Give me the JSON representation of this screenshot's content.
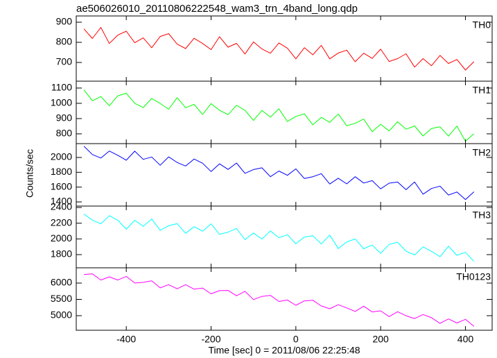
{
  "title": "ae506026010_20110806222548_wam3_trn_4band_long.qdp",
  "xlabel": "Time [sec] 0 = 2011/08/06 22:25:48",
  "ylabel": "Counts/sec",
  "chart_data": [
    {
      "type": "line",
      "label": "TH0",
      "color": "#ff0000",
      "x": [
        -500,
        -480,
        -460,
        -440,
        -420,
        -400,
        -380,
        -360,
        -340,
        -320,
        -300,
        -280,
        -260,
        -240,
        -220,
        -200,
        -180,
        -160,
        -140,
        -120,
        -100,
        -80,
        -60,
        -40,
        -20,
        0,
        20,
        40,
        60,
        80,
        100,
        120,
        140,
        160,
        180,
        200,
        220,
        240,
        260,
        280,
        300,
        320,
        340,
        360,
        380,
        400,
        420
      ],
      "values": [
        867,
        819,
        874,
        794,
        836,
        855,
        798,
        822,
        773,
        829,
        843,
        791,
        769,
        820,
        794,
        764,
        828,
        776,
        795,
        742,
        802,
        767,
        746,
        797,
        771,
        718,
        773,
        738,
        785,
        718,
        747,
        761,
        704,
        746,
        720,
        766,
        705,
        719,
        743,
        677,
        719,
        684,
        735,
        695,
        715,
        662,
        704
      ],
      "xlim": [
        -518,
        463
      ],
      "xticks": [
        -400,
        -200,
        0,
        200,
        400
      ],
      "ylim": [
        607,
        931
      ],
      "yticks": [
        700,
        800,
        900
      ]
    },
    {
      "type": "line",
      "label": "TH1",
      "color": "#00ff00",
      "x": [
        -500,
        -480,
        -460,
        -440,
        -420,
        -400,
        -380,
        -360,
        -340,
        -320,
        -300,
        -280,
        -260,
        -240,
        -220,
        -200,
        -180,
        -160,
        -140,
        -120,
        -100,
        -80,
        -60,
        -40,
        -20,
        0,
        20,
        40,
        60,
        80,
        100,
        120,
        140,
        160,
        180,
        200,
        220,
        240,
        260,
        280,
        300,
        320,
        340,
        360,
        380,
        400,
        420
      ],
      "values": [
        1089,
        1017,
        1044,
        984,
        1049,
        1066,
        1000,
        972,
        1032,
        999,
        961,
        1037,
        971,
        993,
        927,
        998,
        954,
        926,
        987,
        954,
        888,
        953,
        909,
        964,
        881,
        914,
        931,
        859,
        908,
        875,
        930,
        853,
        869,
        897,
        814,
        863,
        819,
        879,
        830,
        852,
        786,
        835,
        846,
        785,
        851,
        752,
        801
      ],
      "xlim": [
        -518,
        463
      ],
      "xticks": [
        -400,
        -200,
        0,
        200,
        400
      ],
      "ylim": [
        736,
        1145
      ],
      "yticks": [
        800,
        900,
        1000,
        1100
      ]
    },
    {
      "type": "line",
      "label": "TH2",
      "color": "#0000ff",
      "x": [
        -500,
        -480,
        -460,
        -440,
        -420,
        -400,
        -380,
        -360,
        -340,
        -320,
        -300,
        -280,
        -260,
        -240,
        -220,
        -200,
        -180,
        -160,
        -140,
        -120,
        -100,
        -80,
        -60,
        -40,
        -20,
        0,
        20,
        40,
        60,
        80,
        100,
        120,
        140,
        160,
        180,
        200,
        220,
        240,
        260,
        280,
        300,
        320,
        340,
        360,
        380,
        400,
        420
      ],
      "values": [
        2152,
        2040,
        1992,
        2087,
        2030,
        1963,
        2085,
        1974,
        2006,
        1895,
        2008,
        1932,
        1884,
        1979,
        1922,
        1810,
        1914,
        1839,
        1925,
        1786,
        1837,
        1860,
        1740,
        1817,
        1759,
        1846,
        1716,
        1740,
        1781,
        1642,
        1720,
        1644,
        1740,
        1655,
        1687,
        1576,
        1653,
        1668,
        1565,
        1669,
        1504,
        1581,
        1613,
        1493,
        1534,
        1432,
        1536
      ],
      "xlim": [
        -518,
        463
      ],
      "xticks": [
        -400,
        -200,
        0,
        200,
        400
      ],
      "ylim": [
        1344,
        2187
      ],
      "yticks": [
        1400,
        1600,
        1800,
        2000
      ]
    },
    {
      "type": "line",
      "label": "TH3",
      "color": "#00ffff",
      "x": [
        -500,
        -480,
        -460,
        -440,
        -420,
        -400,
        -380,
        -360,
        -340,
        -320,
        -300,
        -280,
        -260,
        -240,
        -220,
        -200,
        -180,
        -160,
        -140,
        -120,
        -100,
        -80,
        -60,
        -40,
        -20,
        0,
        20,
        40,
        60,
        80,
        100,
        120,
        140,
        160,
        180,
        200,
        220,
        240,
        260,
        280,
        300,
        320,
        340,
        360,
        380,
        400,
        420
      ],
      "values": [
        2317,
        2240,
        2192,
        2296,
        2238,
        2123,
        2237,
        2160,
        2254,
        2111,
        2167,
        2195,
        2071,
        2156,
        2098,
        2192,
        2058,
        2086,
        2133,
        1990,
        2075,
        1998,
        2102,
        2015,
        2053,
        1938,
        2023,
        2041,
        1936,
        2049,
        1877,
        1962,
        1999,
        1875,
        1922,
        1817,
        1930,
        1958,
        1843,
        1795,
        1899,
        1841,
        1774,
        1906,
        1791,
        1829,
        1714
      ],
      "xlim": [
        -518,
        463
      ],
      "xticks": [
        -400,
        -200,
        0,
        200,
        400
      ],
      "ylim": [
        1632,
        2418
      ],
      "yticks": [
        1800,
        2000,
        2200,
        2400
      ]
    },
    {
      "type": "line",
      "label": "TH0123",
      "color": "#ff00ff",
      "x": [
        -500,
        -480,
        -460,
        -440,
        -420,
        -400,
        -380,
        -360,
        -340,
        -320,
        -300,
        -280,
        -260,
        -240,
        -220,
        -200,
        -180,
        -160,
        -140,
        -120,
        -100,
        -80,
        -60,
        -40,
        -20,
        0,
        20,
        40,
        60,
        80,
        100,
        120,
        140,
        160,
        180,
        200,
        220,
        240,
        260,
        280,
        300,
        320,
        340,
        360,
        380,
        400,
        420
      ],
      "values": [
        6263,
        6282,
        6094,
        6191,
        6094,
        6204,
        6002,
        6022,
        6067,
        5853,
        5950,
        5826,
        5950,
        5813,
        5846,
        5670,
        5767,
        5774,
        5611,
        5747,
        5494,
        5591,
        5624,
        5435,
        5480,
        5318,
        5454,
        5474,
        5298,
        5213,
        5337,
        5239,
        5129,
        5291,
        5115,
        5148,
        4972,
        5122,
        4998,
        4913,
        5037,
        4939,
        4763,
        4900,
        4776,
        4887,
        4672
      ],
      "xlim": [
        -518,
        463
      ],
      "xticks": [
        -400,
        -200,
        0,
        200,
        400
      ],
      "ylim": [
        4553,
        6468
      ],
      "yticks": [
        5000,
        5500,
        6000
      ]
    }
  ]
}
